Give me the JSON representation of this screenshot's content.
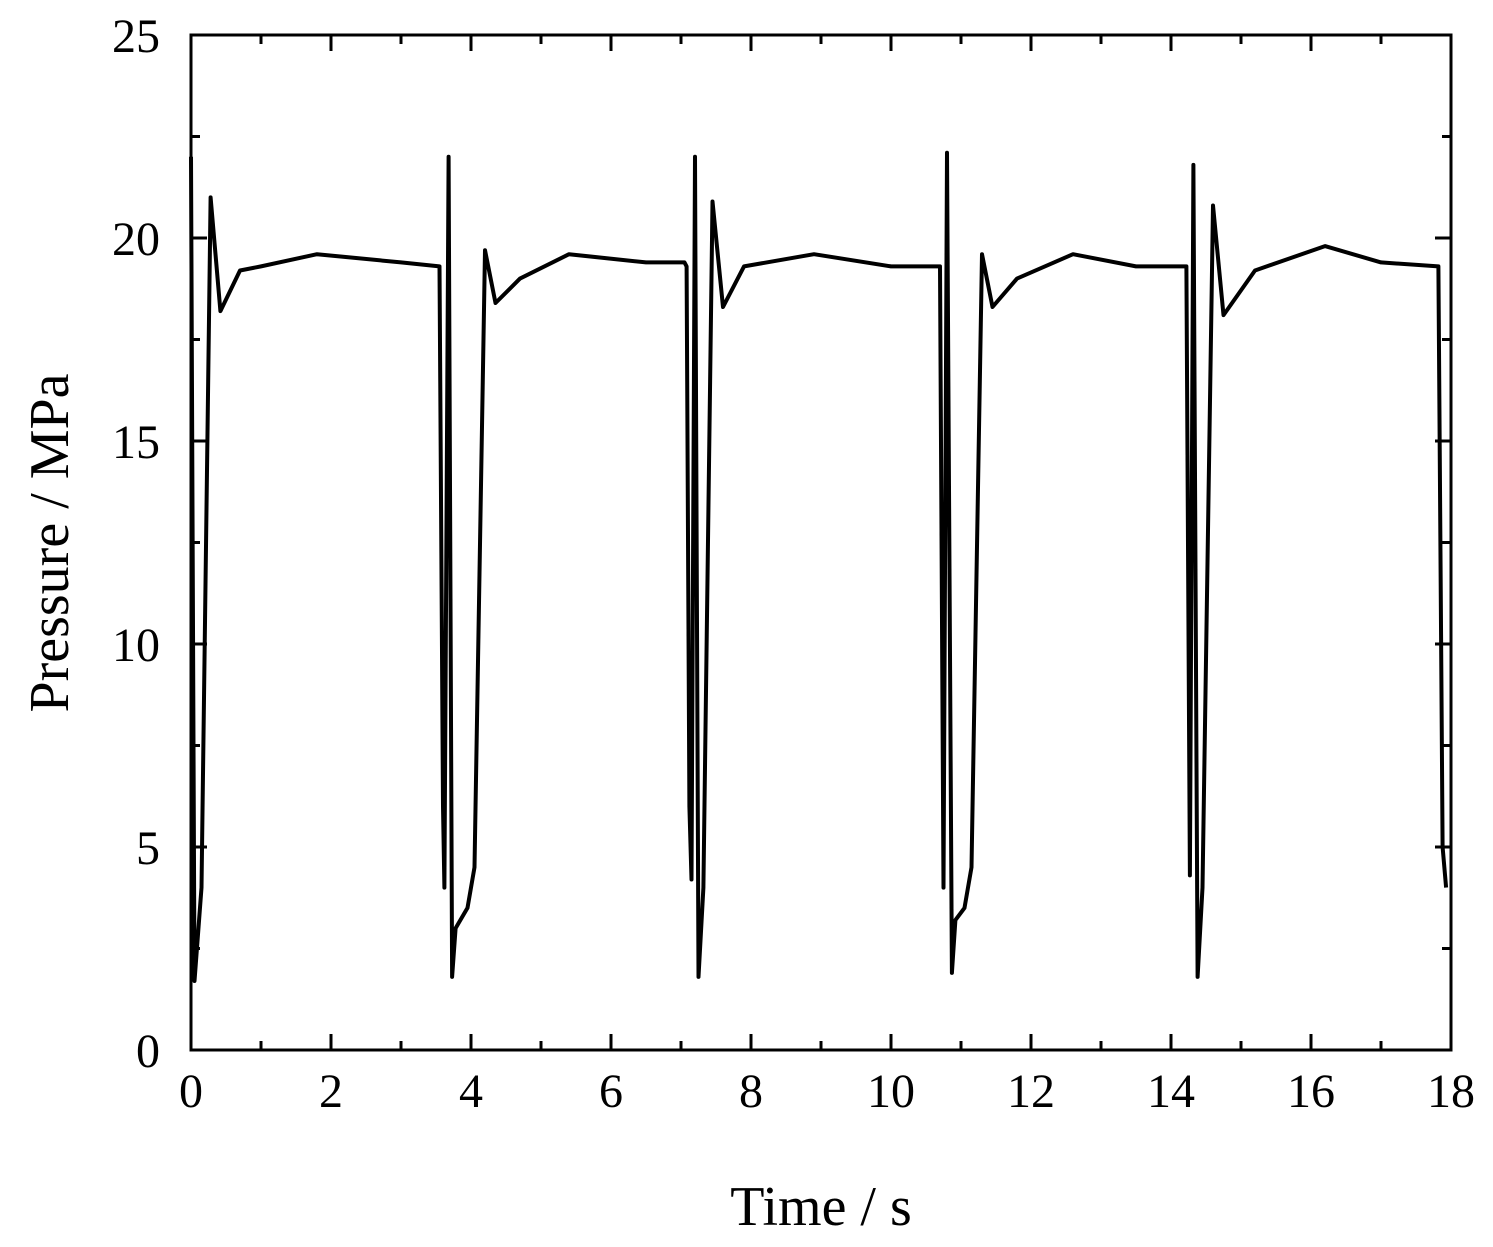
{
  "chart_data": {
    "type": "line",
    "xlabel": "Time / s",
    "ylabel": "Pressure / MPa",
    "xlim": [
      0,
      18
    ],
    "xticks": [
      0,
      2,
      4,
      6,
      8,
      10,
      12,
      14,
      16,
      18
    ],
    "ylim": [
      0,
      25
    ],
    "yticks": [
      0,
      5,
      10,
      15,
      20,
      25
    ],
    "series": [
      {
        "name": null,
        "color": "#000000",
        "x": [
          0,
          0.05,
          0.15,
          0.28,
          0.42,
          0.7,
          1.0,
          1.8,
          3.0,
          3.55,
          3.6,
          3.62,
          3.68,
          3.73,
          3.78,
          3.95,
          4.05,
          4.2,
          4.35,
          4.7,
          5.4,
          6.5,
          7.05,
          7.08,
          7.12,
          7.15,
          7.2,
          7.25,
          7.32,
          7.45,
          7.6,
          7.9,
          8.9,
          10.0,
          10.68,
          10.7,
          10.75,
          10.8,
          10.87,
          10.92,
          11.05,
          11.15,
          11.3,
          11.45,
          11.8,
          12.6,
          13.5,
          14.2,
          14.22,
          14.27,
          14.32,
          14.38,
          14.45,
          14.6,
          14.75,
          15.2,
          16.2,
          17.0,
          17.82,
          17.88,
          17.93
        ],
        "values": [
          22,
          1.7,
          4,
          21,
          18.2,
          19.2,
          19.3,
          19.6,
          19.4,
          19.3,
          6,
          4,
          22,
          1.8,
          3,
          3.5,
          4.5,
          19.7,
          18.4,
          19.0,
          19.6,
          19.4,
          19.4,
          19.3,
          6,
          4.2,
          22,
          1.8,
          4,
          20.9,
          18.3,
          19.3,
          19.6,
          19.3,
          19.3,
          19.3,
          4,
          22.1,
          1.9,
          3.2,
          3.5,
          4.5,
          19.6,
          18.3,
          19.0,
          19.6,
          19.3,
          19.3,
          19.3,
          4.3,
          21.8,
          1.8,
          4,
          20.8,
          18.1,
          19.2,
          19.8,
          19.4,
          19.3,
          5,
          4
        ]
      }
    ]
  }
}
